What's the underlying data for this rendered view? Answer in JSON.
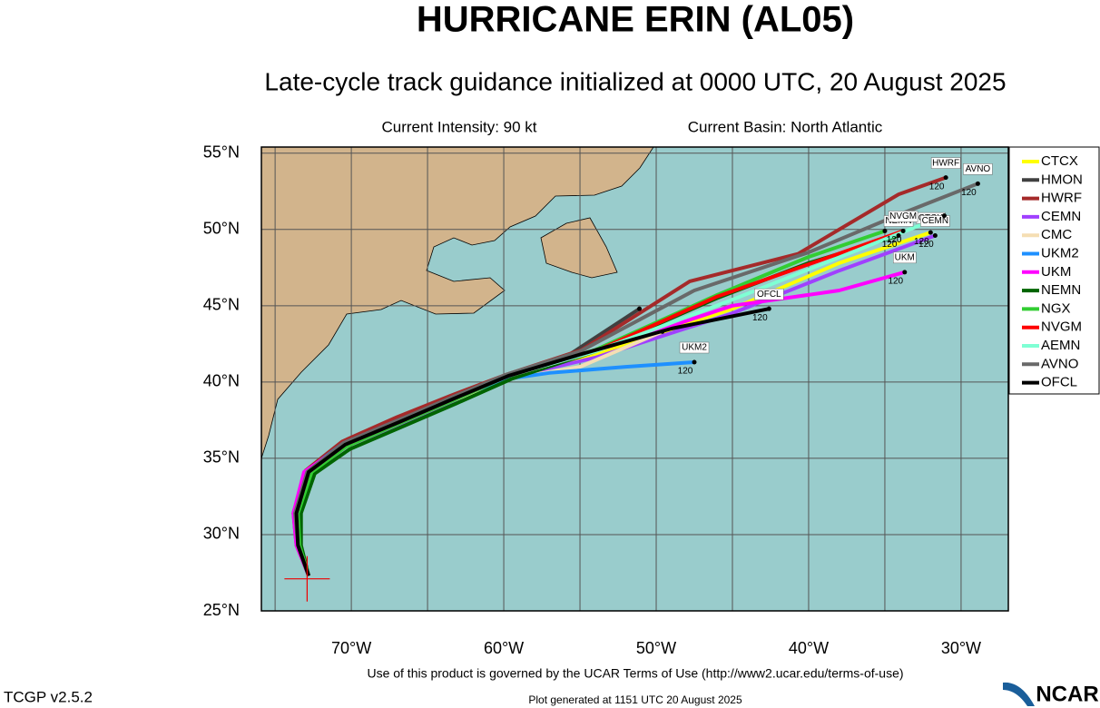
{
  "chart_data": {
    "type": "line",
    "title": "HURRICANE ERIN (AL05)",
    "subtitle": "Late-cycle track guidance initialized at 0000 UTC, 20 August 2025",
    "annotations": [
      "Current Intensity: 90 kt",
      "Current Basin: North Atlantic"
    ],
    "footer": [
      "Use of this product is governed by the UCAR Terms of Use (http://www2.ucar.edu/terms-of-use)",
      "TCGP v2.5.2",
      "Plot generated at 1151 UTC   20 August 2025",
      "NCAR"
    ],
    "xlim": [
      -75.9,
      -26.9
    ],
    "ylim": [
      25,
      55.4
    ],
    "xticks": [
      {
        "value": -70,
        "label": "70°W"
      },
      {
        "value": -60,
        "label": "60°W"
      },
      {
        "value": -50,
        "label": "50°W"
      },
      {
        "value": -40,
        "label": "40°W"
      },
      {
        "value": -30,
        "label": "30°W"
      }
    ],
    "xgrid_minor": [
      -75,
      -65,
      -55,
      -45,
      -35
    ],
    "yticks": [
      {
        "value": 25,
        "label": "25°N"
      },
      {
        "value": 30,
        "label": "30°N"
      },
      {
        "value": 35,
        "label": "35°N"
      },
      {
        "value": 40,
        "label": "40°N"
      },
      {
        "value": 45,
        "label": "45°N"
      },
      {
        "value": 50,
        "label": "50°N"
      },
      {
        "value": 55,
        "label": "55°N"
      }
    ],
    "grid": true,
    "legend": "right",
    "current_position": {
      "x": -72.9,
      "y": 27.1
    },
    "series": [
      {
        "name": "CTCX",
        "color": "#ffff00",
        "end_hour": 120,
        "x": [
          -72.8,
          -73.4,
          -73.5,
          -72.6,
          -70.3,
          -66.8,
          -63.3,
          -59.7,
          -54,
          -45,
          -38,
          -32
        ],
        "y": [
          27.3,
          29.3,
          31.4,
          34.1,
          35.8,
          37.3,
          38.8,
          40.3,
          41.8,
          44.8,
          47.8,
          49.8
        ]
      },
      {
        "name": "HMON",
        "color": "#404040",
        "x": [
          -72.8,
          -73.5,
          -73.6,
          -72.8,
          -70.4,
          -66.8,
          -63.3,
          -59.7,
          -56,
          -51.1
        ],
        "y": [
          27.3,
          29.3,
          31.4,
          34.1,
          35.9,
          37.4,
          38.9,
          40.4,
          41.6,
          44.8
        ]
      },
      {
        "name": "HWRF",
        "color": "#a52a2a",
        "end_hour": 120,
        "x": [
          -72.8,
          -73.6,
          -73.8,
          -73.0,
          -70.6,
          -67.0,
          -63.5,
          -59.8,
          -54.9,
          -47.8,
          -40.7,
          -34.1,
          -31.0
        ],
        "y": [
          27.3,
          29.3,
          31.4,
          34.2,
          36.1,
          37.7,
          39.1,
          40.5,
          42.1,
          46.6,
          48.4,
          52.3,
          53.4
        ]
      },
      {
        "name": "CEMN",
        "color": "#a040ff",
        "end_hour": 120,
        "x": [
          -72.8,
          -73.5,
          -73.6,
          -72.7,
          -70.3,
          -66.7,
          -63.2,
          -59.6,
          -54,
          -45,
          -38,
          -31.7
        ],
        "y": [
          27.3,
          29.3,
          31.3,
          34.0,
          35.8,
          37.3,
          38.8,
          40.3,
          41.6,
          44.5,
          47.3,
          49.6
        ]
      },
      {
        "name": "CMC",
        "color": "#f5deb3",
        "x": [
          -72.8,
          -73.5,
          -73.6,
          -72.8,
          -70.4,
          -66.8,
          -63.3,
          -59.7,
          -55,
          -49.6
        ],
        "y": [
          27.3,
          29.3,
          31.4,
          34.1,
          35.9,
          37.4,
          38.8,
          40.2,
          41.0,
          43.3
        ]
      },
      {
        "name": "UKM2",
        "color": "#1e90ff",
        "end_hour": 120,
        "x": [
          -72.8,
          -73.5,
          -73.7,
          -72.9,
          -70.5,
          -66.9,
          -63.4,
          -59.8,
          -57,
          -52,
          -47.5
        ],
        "y": [
          27.3,
          29.3,
          31.4,
          34.2,
          36.0,
          37.5,
          38.9,
          40.2,
          40.6,
          41.0,
          41.3
        ]
      },
      {
        "name": "UKM",
        "color": "#ff00ff",
        "end_hour": 120,
        "x": [
          -72.8,
          -73.6,
          -73.8,
          -73.1,
          -70.5,
          -66.9,
          -63.4,
          -59.8,
          -55,
          -45,
          -38,
          -33.7
        ],
        "y": [
          27.3,
          29.3,
          31.4,
          34.1,
          35.9,
          37.4,
          38.9,
          40.4,
          41.7,
          45.0,
          46.0,
          47.2
        ]
      },
      {
        "name": "NEMN",
        "color": "#006400",
        "end_hour": 120,
        "x": [
          -72.8,
          -73.3,
          -73.3,
          -72.4,
          -70.1,
          -66.6,
          -63.1,
          -59.5,
          -54,
          -46,
          -40,
          -34.1
        ],
        "y": [
          27.3,
          29.3,
          31.4,
          34.0,
          35.6,
          37.1,
          38.6,
          40.2,
          42.0,
          45.5,
          47.8,
          49.6
        ]
      },
      {
        "name": "NGX",
        "color": "#32cd32",
        "x": [
          -72.8,
          -73.4,
          -73.5,
          -72.6,
          -70.3,
          -66.8,
          -63.3,
          -59.7,
          -54,
          -46,
          -40,
          -35.0
        ],
        "y": [
          27.3,
          29.3,
          31.4,
          34.1,
          35.8,
          37.3,
          38.8,
          40.4,
          42.1,
          45.7,
          48.2,
          49.9
        ]
      },
      {
        "name": "NVGM",
        "color": "#ff0000",
        "end_hour": 120,
        "x": [
          -72.8,
          -73.5,
          -73.6,
          -72.8,
          -70.4,
          -66.8,
          -63.3,
          -59.7,
          -54,
          -46,
          -33.8
        ],
        "y": [
          27.3,
          29.3,
          31.4,
          34.1,
          35.9,
          37.4,
          38.9,
          40.4,
          42.0,
          45.6,
          49.9
        ]
      },
      {
        "name": "AEMN",
        "color": "#7fffd4",
        "x": [
          -72.8,
          -73.5,
          -73.6,
          -72.8,
          -70.4,
          -66.8,
          -63.3,
          -59.7,
          -54,
          -45,
          -31.1
        ],
        "y": [
          27.3,
          29.3,
          31.4,
          34.1,
          35.9,
          37.4,
          38.9,
          40.4,
          42.0,
          45.4,
          50.9
        ]
      },
      {
        "name": "AVNO",
        "color": "#696969",
        "end_hour": 120,
        "x": [
          -72.8,
          -73.5,
          -73.7,
          -72.9,
          -70.5,
          -66.9,
          -63.4,
          -59.8,
          -55,
          -47.5,
          -40,
          -34,
          -28.9
        ],
        "y": [
          27.3,
          29.3,
          31.4,
          34.1,
          36.0,
          37.5,
          39.0,
          40.5,
          42.0,
          46.0,
          48.5,
          51.0,
          53.0
        ]
      },
      {
        "name": "OFCL",
        "color": "#000000",
        "end_hour": 120,
        "x": [
          -72.8,
          -73.5,
          -73.6,
          -72.8,
          -70.4,
          -66.8,
          -63.3,
          -59.7,
          -55,
          -49,
          -42.6
        ],
        "y": [
          27.3,
          29.3,
          31.4,
          34.1,
          35.9,
          37.4,
          38.9,
          40.4,
          41.8,
          43.5,
          44.8
        ]
      }
    ]
  }
}
